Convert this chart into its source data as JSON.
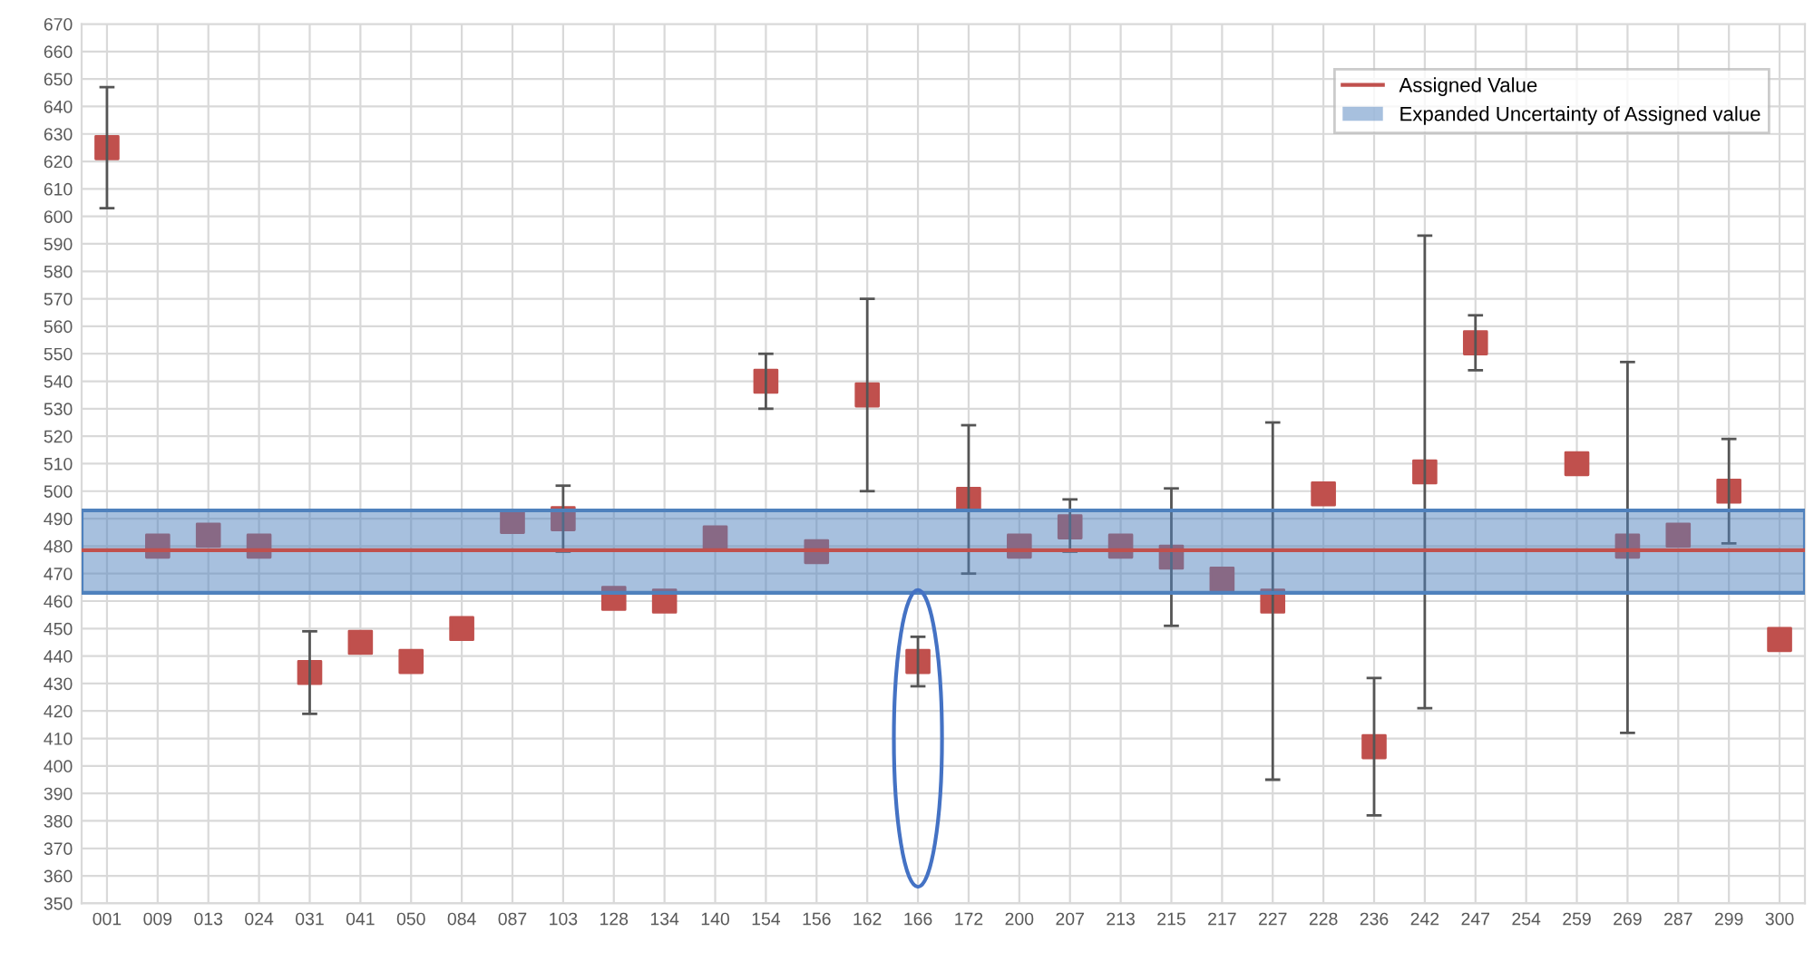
{
  "chart_data": {
    "type": "scatter",
    "categories": [
      "001",
      "009",
      "013",
      "024",
      "031",
      "041",
      "050",
      "084",
      "087",
      "103",
      "128",
      "134",
      "140",
      "154",
      "156",
      "162",
      "166",
      "172",
      "200",
      "207",
      "213",
      "215",
      "217",
      "227",
      "228",
      "236",
      "242",
      "247",
      "254",
      "259",
      "269",
      "287",
      "299",
      "300"
    ],
    "series": [
      {
        "color": "#c0504d",
        "values": [
          625,
          480,
          484,
          480,
          434,
          445,
          438,
          450,
          489,
          490,
          461,
          460,
          483,
          540,
          478,
          535,
          438,
          497,
          480,
          487,
          480,
          476,
          468,
          460,
          499,
          407,
          507,
          554,
          null,
          510,
          480,
          484,
          500,
          446
        ],
        "errors": [
          [
            603,
            647
          ],
          null,
          null,
          null,
          [
            419,
            449
          ],
          null,
          null,
          null,
          null,
          [
            478,
            502
          ],
          null,
          null,
          null,
          [
            530,
            550
          ],
          null,
          [
            500,
            570
          ],
          [
            429,
            447
          ],
          [
            470,
            524
          ],
          null,
          [
            478,
            497
          ],
          null,
          [
            451,
            501
          ],
          null,
          [
            395,
            525
          ],
          null,
          [
            382,
            432
          ],
          [
            421,
            593
          ],
          [
            544,
            564
          ],
          null,
          null,
          [
            412,
            547
          ],
          null,
          [
            481,
            519
          ],
          null
        ]
      }
    ],
    "marker": "square",
    "ylim": [
      350,
      670
    ],
    "yticks": [
      350,
      360,
      370,
      380,
      390,
      400,
      410,
      420,
      430,
      440,
      450,
      460,
      470,
      480,
      490,
      500,
      510,
      520,
      530,
      540,
      550,
      560,
      570,
      580,
      590,
      600,
      610,
      620,
      630,
      640,
      650,
      660,
      670
    ],
    "ref_lines": [
      {
        "axis": "y",
        "value": 478.5,
        "label": "Assigned Value",
        "color": "#c0504d",
        "line_style": "solid"
      }
    ],
    "bands": [
      {
        "axis": "y",
        "from": 463,
        "to": 493,
        "label": "Expanded Uncertainty of Assigned value",
        "color": "#4f81bd"
      }
    ],
    "grid": true,
    "legend": "top right"
  }
}
